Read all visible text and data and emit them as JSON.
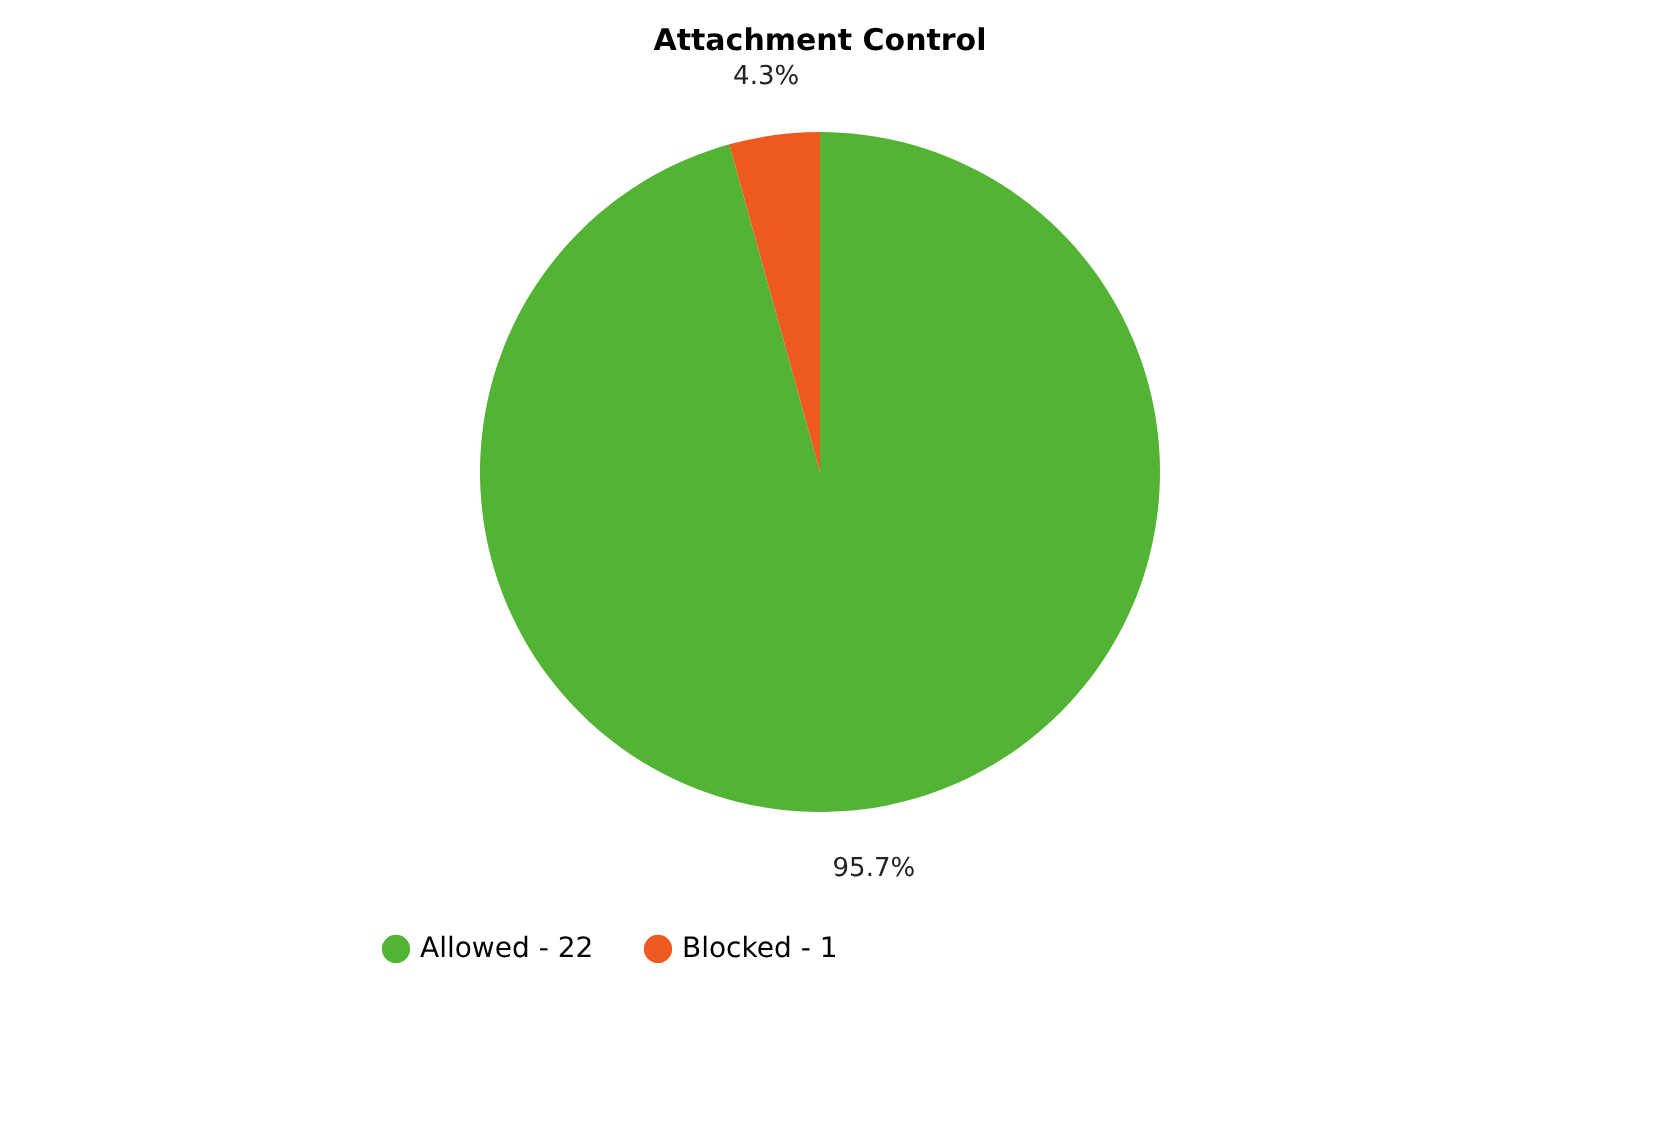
{
  "chart_data": {
    "type": "pie",
    "title": "Attachment Control",
    "categories": [
      "Allowed - 22",
      "Blocked - 1"
    ],
    "values": [
      95.7,
      4.3
    ],
    "colors": [
      "#52b335",
      "#ee5a1e"
    ],
    "value_labels": [
      "95.7%",
      "4.3%"
    ],
    "legend": "bottom"
  }
}
